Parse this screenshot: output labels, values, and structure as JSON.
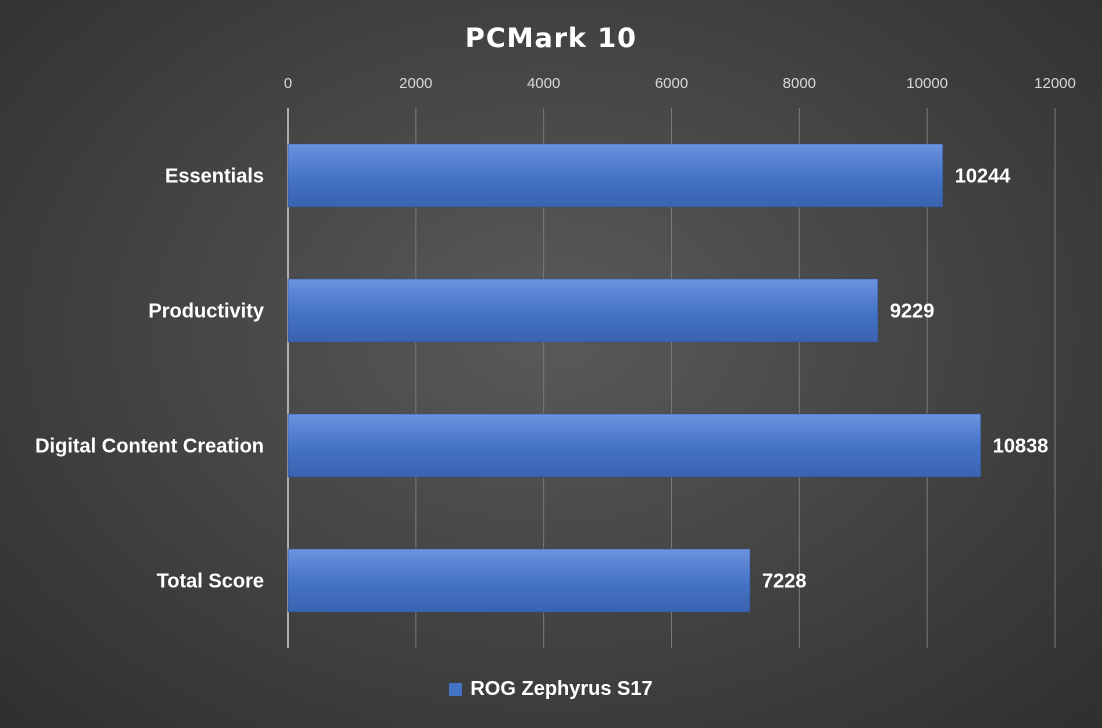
{
  "chart_data": {
    "type": "bar",
    "orientation": "horizontal",
    "title": "PCMark 10",
    "categories": [
      "Essentials",
      "Productivity",
      "Digital Content Creation",
      "Total Score"
    ],
    "series": [
      {
        "name": "ROG Zephyrus S17",
        "values": [
          10244,
          9229,
          10838,
          7228
        ],
        "color": "#4472c4"
      }
    ],
    "xlim": [
      0,
      12000
    ],
    "x_ticks": [
      0,
      2000,
      4000,
      6000,
      8000,
      10000,
      12000
    ],
    "x_axis_position": "top",
    "grid": true,
    "data_labels": true,
    "legend": "bottom"
  }
}
